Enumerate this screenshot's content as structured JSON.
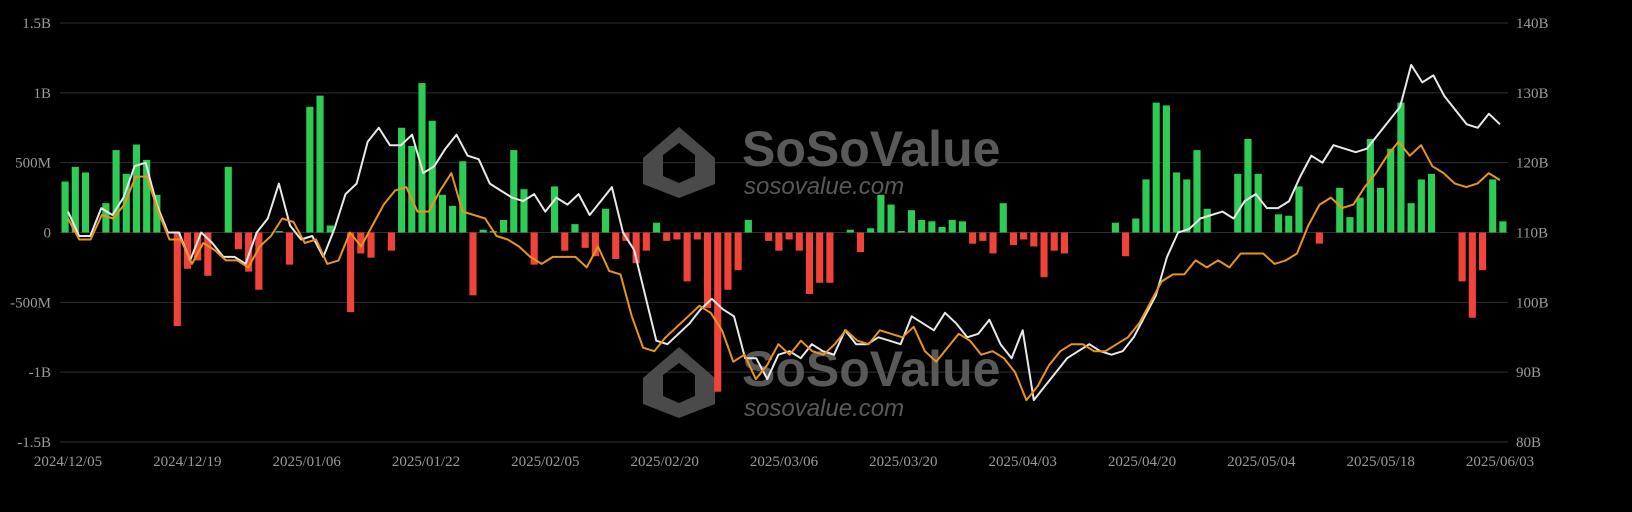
{
  "watermark": {
    "brand": "SoSoValue",
    "url": "sosovalue.com"
  },
  "colors": {
    "positive": "#2ecc55",
    "negative": "#f0433a",
    "white_line": "#e8e8e8",
    "orange_line": "#e8941e",
    "grid": "#2f2f2f",
    "text": "#9a9a9a",
    "background": "#000000"
  },
  "chart_data": {
    "type": "bar",
    "grid": true,
    "legend": "none",
    "x_tick_labels": [
      "2024/12/05",
      "2024/12/19",
      "2025/01/06",
      "2025/01/22",
      "2025/02/05",
      "2025/02/20",
      "2025/03/06",
      "2025/03/20",
      "2025/04/03",
      "2025/04/20",
      "2025/05/04",
      "2025/05/18",
      "2025/06/03"
    ],
    "y_left": {
      "ticks": [
        "1.5B",
        "1B",
        "500M",
        "0",
        "-500M",
        "-1B",
        "-1.5B"
      ],
      "range": [
        -1500000000,
        1500000000
      ]
    },
    "y_right": {
      "ticks": [
        "140B",
        "130B",
        "120B",
        "110B",
        "100B",
        "90B",
        "80B"
      ],
      "range": [
        80,
        140
      ]
    },
    "series": [
      {
        "kind": "bar",
        "axis": "left",
        "values": [
          365,
          470,
          430,
          0,
          210,
          590,
          420,
          630,
          520,
          270,
          0,
          -670,
          -260,
          -200,
          -310,
          0,
          470,
          -120,
          -280,
          -410,
          0,
          10,
          -230,
          0,
          900,
          980,
          50,
          0,
          -570,
          -150,
          -180,
          0,
          -130,
          750,
          620,
          1070,
          800,
          270,
          190,
          510,
          -450,
          20,
          10,
          90,
          590,
          310,
          -230,
          0,
          330,
          -130,
          60,
          -110,
          -170,
          170,
          -190,
          -60,
          -220,
          -130,
          70,
          -60,
          -50,
          -350,
          -50,
          -540,
          -1140,
          -410,
          -270,
          90,
          0,
          -60,
          -130,
          -50,
          -130,
          -440,
          -360,
          -360,
          0,
          20,
          -140,
          30,
          270,
          200,
          10,
          160,
          90,
          80,
          40,
          90,
          80,
          -80,
          -60,
          -150,
          210,
          -90,
          -50,
          -100,
          -320,
          -130,
          -150,
          0,
          0,
          0,
          0,
          70,
          -170,
          100,
          380,
          930,
          910,
          430,
          380,
          590,
          170,
          0,
          0,
          420,
          670,
          420,
          0,
          130,
          120,
          330,
          0,
          -80,
          0,
          320,
          110,
          250,
          670,
          320,
          600,
          930,
          210,
          380,
          420,
          0,
          0,
          -350,
          -610,
          -270,
          380,
          80
        ]
      },
      {
        "kind": "line",
        "axis": "right",
        "color": "white",
        "values": [
          113,
          109.5,
          109.5,
          113.5,
          112.5,
          115,
          119.5,
          120,
          114,
          110,
          110,
          106,
          110,
          108.5,
          106.5,
          106.5,
          105.5,
          110,
          112,
          117,
          111,
          109,
          109.5,
          106.5,
          110.5,
          115.5,
          117,
          123,
          125,
          122.5,
          122.5,
          124,
          118.5,
          119.5,
          122,
          124,
          121,
          120.5,
          117,
          116,
          115,
          114.5,
          115.5,
          113,
          115,
          114,
          115.5,
          112.5,
          114.5,
          116.5,
          110,
          107.5,
          101,
          94.5,
          94,
          95.5,
          97,
          99,
          100.5,
          99,
          98,
          92,
          92,
          89,
          92.5,
          93,
          92,
          94,
          93,
          92.5,
          96,
          94,
          94,
          95,
          94.5,
          94,
          98,
          97,
          96,
          98.5,
          97,
          95,
          95.5,
          97.5,
          94,
          92,
          96,
          86,
          88,
          90,
          92,
          93,
          94,
          93,
          92.5,
          93,
          95,
          98,
          101,
          106.5,
          110,
          110.5,
          112,
          112.5,
          113,
          112,
          114.5,
          115.5,
          113.5,
          113.5,
          114.5,
          118,
          121,
          120,
          122.5,
          122,
          121.5,
          122,
          124,
          126,
          128,
          134,
          131.5,
          132.5,
          129.5,
          127.5,
          125.5,
          125,
          127,
          125.5
        ]
      },
      {
        "kind": "line",
        "axis": "right",
        "color": "orange",
        "values": [
          112,
          109,
          109,
          112.5,
          112,
          114,
          118,
          118,
          113,
          109,
          109,
          105.5,
          108.5,
          107.5,
          106,
          106,
          105,
          108,
          109.5,
          112,
          111.5,
          108.5,
          109,
          105.5,
          106,
          110,
          108,
          111,
          114,
          116,
          116.5,
          113,
          113,
          116,
          118.5,
          113,
          112.5,
          112,
          109.5,
          109,
          108,
          106.5,
          105.5,
          106.5,
          106.5,
          106.5,
          105,
          108,
          104.5,
          104,
          98,
          93.5,
          93,
          95,
          96.5,
          98,
          99.5,
          98.5,
          96,
          91.5,
          92.5,
          89,
          91,
          94,
          92.5,
          94.5,
          93,
          92.5,
          94,
          96,
          94.5,
          94,
          96,
          95.5,
          95,
          96.5,
          93,
          91.5,
          93.5,
          95.5,
          94.5,
          92.5,
          93,
          92,
          90,
          86,
          88,
          91,
          93,
          94,
          94,
          93,
          93,
          94,
          95,
          97,
          100,
          103,
          104,
          104,
          106,
          105,
          106,
          105,
          107,
          107,
          107,
          105.5,
          106,
          107,
          111,
          114,
          115,
          113.5,
          114,
          116.5,
          118.5,
          121,
          123,
          121,
          122.5,
          119.5,
          118.5,
          117,
          116.5,
          117,
          118.5,
          117.5
        ]
      }
    ]
  }
}
